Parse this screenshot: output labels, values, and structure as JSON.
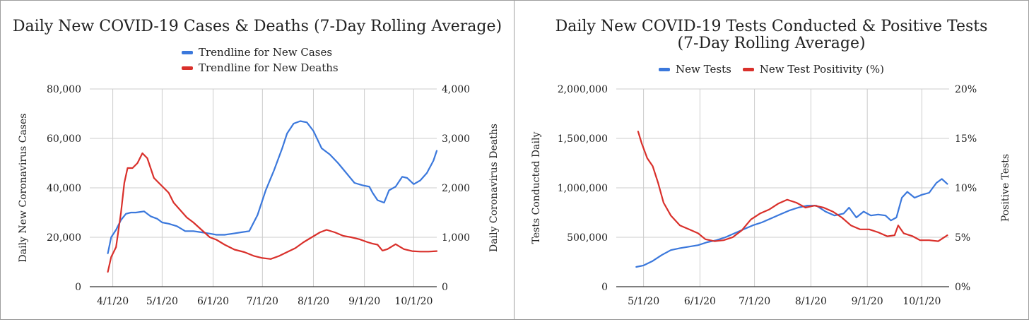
{
  "colors": {
    "cases": "#3b78dc",
    "deaths": "#d9302b",
    "grid": "#cccccc",
    "axis": "#333333"
  },
  "chart_data": [
    {
      "type": "line",
      "title": "Daily New COVID-19 Cases & Deaths (7-Day Rolling Average)",
      "legend": {
        "placement": "top",
        "entries": [
          "Trendline for New Cases",
          "Trendline for New Deaths"
        ]
      },
      "xlabel": "",
      "ylabel": "Daily New Coronavirus Cases",
      "y2label": "Daily Coronavirus Deaths",
      "xlim": [
        "2020-03-18",
        "2020-10-15"
      ],
      "ylim": [
        0,
        80000
      ],
      "y2lim": [
        0,
        4000
      ],
      "x_ticks": [
        "2020-04-01",
        "2020-05-01",
        "2020-06-01",
        "2020-07-01",
        "2020-08-01",
        "2020-09-01",
        "2020-10-01"
      ],
      "x_tick_labels": [
        "4/1/20",
        "5/1/20",
        "6/1/20",
        "7/1/20",
        "8/1/20",
        "9/1/20",
        "10/1/20"
      ],
      "y_tick_labels": [
        "0",
        "20,000",
        "40,000",
        "60,000",
        "80,000"
      ],
      "y2_tick_labels": [
        "0",
        "1,000",
        "2,000",
        "3,000",
        "4,000"
      ],
      "grid": true,
      "series": [
        {
          "name": "Trendline for New Cases",
          "axis": "left",
          "x": [
            "2020-03-29",
            "2020-03-31",
            "2020-04-03",
            "2020-04-06",
            "2020-04-09",
            "2020-04-12",
            "2020-04-15",
            "2020-04-20",
            "2020-04-24",
            "2020-04-28",
            "2020-05-01",
            "2020-05-05",
            "2020-05-10",
            "2020-05-15",
            "2020-05-20",
            "2020-05-25",
            "2020-05-30",
            "2020-06-03",
            "2020-06-08",
            "2020-06-13",
            "2020-06-18",
            "2020-06-23",
            "2020-06-28",
            "2020-07-03",
            "2020-07-08",
            "2020-07-13",
            "2020-07-16",
            "2020-07-20",
            "2020-07-24",
            "2020-07-28",
            "2020-08-01",
            "2020-08-06",
            "2020-08-11",
            "2020-08-16",
            "2020-08-21",
            "2020-08-26",
            "2020-08-31",
            "2020-09-04",
            "2020-09-06",
            "2020-09-09",
            "2020-09-13",
            "2020-09-16",
            "2020-09-20",
            "2020-09-24",
            "2020-09-27",
            "2020-10-01",
            "2020-10-05",
            "2020-10-09",
            "2020-10-13",
            "2020-10-15"
          ],
          "values": [
            13500,
            20000,
            23000,
            27000,
            29500,
            30000,
            30000,
            30500,
            28500,
            27500,
            26000,
            25500,
            24500,
            22500,
            22500,
            22000,
            21500,
            21000,
            21000,
            21500,
            22000,
            22500,
            29000,
            39000,
            47000,
            56000,
            62000,
            66000,
            67000,
            66500,
            63000,
            56000,
            53500,
            50000,
            46000,
            42000,
            41000,
            40500,
            38000,
            35000,
            34000,
            39000,
            40500,
            44500,
            44000,
            41500,
            43000,
            46000,
            51000,
            55000
          ]
        },
        {
          "name": "Trendline for New Deaths",
          "axis": "right",
          "x": [
            "2020-03-29",
            "2020-03-31",
            "2020-04-03",
            "2020-04-06",
            "2020-04-08",
            "2020-04-10",
            "2020-04-13",
            "2020-04-16",
            "2020-04-19",
            "2020-04-22",
            "2020-04-24",
            "2020-04-26",
            "2020-04-29",
            "2020-05-02",
            "2020-05-05",
            "2020-05-08",
            "2020-05-12",
            "2020-05-16",
            "2020-05-20",
            "2020-05-25",
            "2020-05-30",
            "2020-06-03",
            "2020-06-08",
            "2020-06-14",
            "2020-06-20",
            "2020-06-26",
            "2020-07-01",
            "2020-07-06",
            "2020-07-11",
            "2020-07-16",
            "2020-07-21",
            "2020-07-26",
            "2020-07-31",
            "2020-08-05",
            "2020-08-09",
            "2020-08-14",
            "2020-08-19",
            "2020-08-24",
            "2020-08-29",
            "2020-09-03",
            "2020-09-06",
            "2020-09-09",
            "2020-09-12",
            "2020-09-15",
            "2020-09-20",
            "2020-09-25",
            "2020-09-30",
            "2020-10-05",
            "2020-10-10",
            "2020-10-15"
          ],
          "values": [
            300,
            600,
            800,
            1500,
            2100,
            2400,
            2400,
            2500,
            2700,
            2600,
            2400,
            2200,
            2100,
            2000,
            1900,
            1700,
            1550,
            1400,
            1300,
            1150,
            1000,
            950,
            850,
            750,
            700,
            620,
            580,
            560,
            620,
            700,
            780,
            900,
            1000,
            1100,
            1150,
            1100,
            1030,
            1000,
            960,
            900,
            870,
            850,
            730,
            760,
            860,
            760,
            720,
            710,
            710,
            720
          ]
        }
      ]
    },
    {
      "type": "line",
      "title": "Daily New COVID-19 Tests Conducted & Positive Tests (7-Day Rolling Average)",
      "legend": {
        "placement": "top",
        "entries": [
          "New Tests",
          "New Test Positivity (%)"
        ]
      },
      "xlabel": "",
      "ylabel": "Tests Conducted Daily",
      "y2label": "Positive Tests",
      "xlim": [
        "2020-04-16",
        "2020-10-16"
      ],
      "ylim": [
        0,
        2000000
      ],
      "y2lim": [
        0,
        20
      ],
      "x_ticks": [
        "2020-05-01",
        "2020-06-01",
        "2020-07-01",
        "2020-08-01",
        "2020-09-01",
        "2020-10-01"
      ],
      "x_tick_labels": [
        "5/1/20",
        "6/1/20",
        "7/1/20",
        "8/1/20",
        "9/1/20",
        "10/1/20"
      ],
      "y_tick_labels": [
        "0",
        "500,000",
        "1,000,000",
        "1,500,000",
        "2,000,000"
      ],
      "y2_tick_labels": [
        "0%",
        "5%",
        "10%",
        "15%",
        "20%"
      ],
      "grid": true,
      "series": [
        {
          "name": "New Tests",
          "axis": "left",
          "x": [
            "2020-04-27",
            "2020-05-01",
            "2020-05-06",
            "2020-05-11",
            "2020-05-16",
            "2020-05-21",
            "2020-05-26",
            "2020-05-31",
            "2020-06-05",
            "2020-06-10",
            "2020-06-15",
            "2020-06-20",
            "2020-06-25",
            "2020-06-30",
            "2020-07-05",
            "2020-07-10",
            "2020-07-15",
            "2020-07-20",
            "2020-07-25",
            "2020-07-30",
            "2020-08-04",
            "2020-08-09",
            "2020-08-14",
            "2020-08-19",
            "2020-08-22",
            "2020-08-26",
            "2020-08-30",
            "2020-09-03",
            "2020-09-07",
            "2020-09-11",
            "2020-09-14",
            "2020-09-17",
            "2020-09-20",
            "2020-09-23",
            "2020-09-27",
            "2020-10-01",
            "2020-10-05",
            "2020-10-09",
            "2020-10-12",
            "2020-10-15"
          ],
          "values": [
            200000,
            215000,
            260000,
            320000,
            370000,
            390000,
            405000,
            420000,
            450000,
            470000,
            500000,
            540000,
            580000,
            620000,
            650000,
            690000,
            730000,
            770000,
            800000,
            820000,
            820000,
            760000,
            720000,
            740000,
            800000,
            700000,
            760000,
            720000,
            730000,
            720000,
            670000,
            700000,
            900000,
            960000,
            900000,
            930000,
            950000,
            1050000,
            1090000,
            1040000
          ]
        },
        {
          "name": "New Test Positivity (%)",
          "axis": "right",
          "x": [
            "2020-04-28",
            "2020-04-30",
            "2020-05-03",
            "2020-05-06",
            "2020-05-09",
            "2020-05-12",
            "2020-05-16",
            "2020-05-21",
            "2020-05-26",
            "2020-05-31",
            "2020-06-04",
            "2020-06-09",
            "2020-06-14",
            "2020-06-19",
            "2020-06-24",
            "2020-06-29",
            "2020-07-04",
            "2020-07-09",
            "2020-07-14",
            "2020-07-19",
            "2020-07-24",
            "2020-07-29",
            "2020-08-03",
            "2020-08-08",
            "2020-08-13",
            "2020-08-18",
            "2020-08-23",
            "2020-08-28",
            "2020-09-02",
            "2020-09-07",
            "2020-09-12",
            "2020-09-16",
            "2020-09-18",
            "2020-09-21",
            "2020-09-26",
            "2020-09-30",
            "2020-10-05",
            "2020-10-10",
            "2020-10-15"
          ],
          "values": [
            15.7,
            14.5,
            13.0,
            12.2,
            10.5,
            8.5,
            7.2,
            6.2,
            5.8,
            5.4,
            4.8,
            4.6,
            4.7,
            5.0,
            5.7,
            6.8,
            7.4,
            7.8,
            8.4,
            8.8,
            8.5,
            8.0,
            8.2,
            8.0,
            7.6,
            7.0,
            6.2,
            5.8,
            5.8,
            5.5,
            5.1,
            5.2,
            6.2,
            5.4,
            5.1,
            4.7,
            4.7,
            4.6,
            5.2
          ]
        }
      ]
    }
  ]
}
